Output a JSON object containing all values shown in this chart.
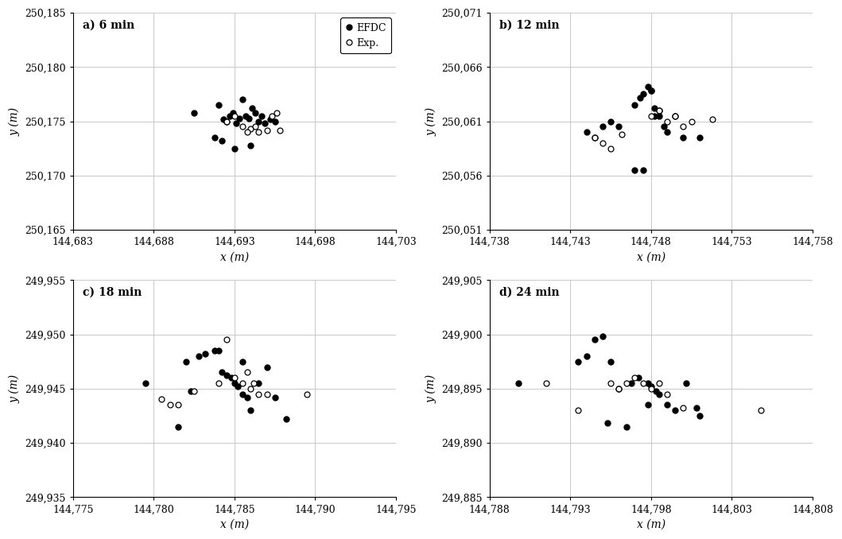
{
  "panels": [
    {
      "label": "a) 6 min",
      "xlim": [
        144683,
        144703
      ],
      "ylim": [
        250165,
        250185
      ],
      "xticks": [
        144683,
        144688,
        144693,
        144698,
        144703
      ],
      "yticks": [
        250165,
        250170,
        250175,
        250180,
        250185
      ],
      "efdc_x": [
        144690.5,
        144691.8,
        144692.0,
        144692.3,
        144692.5,
        144692.7,
        144692.9,
        144693.1,
        144693.3,
        144693.5,
        144693.7,
        144693.9,
        144694.1,
        144694.3,
        144694.5,
        144694.7,
        144694.9,
        144695.2,
        144695.5,
        144692.2,
        144693.0,
        144694.0
      ],
      "efdc_y": [
        250175.8,
        250173.5,
        250176.5,
        250175.2,
        250175.0,
        250175.5,
        250175.8,
        250174.8,
        250175.3,
        250177.0,
        250175.5,
        250175.3,
        250176.2,
        250175.8,
        250175.0,
        250175.5,
        250174.8,
        250175.2,
        250175.0,
        250173.2,
        250172.5,
        250172.8
      ],
      "exp_x": [
        144692.5,
        144693.0,
        144693.5,
        144694.0,
        144694.5,
        144695.0,
        144695.3,
        144695.6,
        144693.8,
        144694.3,
        144695.8
      ],
      "exp_y": [
        250175.0,
        250175.5,
        250174.5,
        250174.3,
        250174.0,
        250174.2,
        250175.5,
        250175.8,
        250174.0,
        250174.5,
        250174.2
      ]
    },
    {
      "label": "b) 12 min",
      "xlim": [
        144738,
        144758
      ],
      "ylim": [
        250051,
        250071
      ],
      "xticks": [
        144738,
        144743,
        144748,
        144753,
        144758
      ],
      "yticks": [
        250051,
        250056,
        250061,
        250066,
        250071
      ],
      "efdc_x": [
        144744.0,
        144744.5,
        144745.0,
        144745.5,
        144746.0,
        144747.0,
        144747.3,
        144747.5,
        144747.8,
        144748.0,
        144748.2,
        144748.5,
        144748.8,
        144749.0,
        144749.5,
        144750.0,
        144751.0,
        144747.0,
        144747.5,
        144748.0,
        144748.5,
        144748.2
      ],
      "efdc_y": [
        250060.0,
        250059.5,
        250060.5,
        250061.0,
        250060.5,
        250062.5,
        250063.2,
        250063.5,
        250064.2,
        250063.8,
        250062.2,
        250061.5,
        250060.5,
        250060.0,
        250061.5,
        250059.5,
        250059.5,
        250056.5,
        250056.5,
        250063.8,
        250062.0,
        250061.5
      ],
      "exp_x": [
        144744.5,
        144745.0,
        144745.5,
        144746.2,
        144748.0,
        144748.5,
        144749.0,
        144749.5,
        144750.0,
        144750.5,
        144751.8
      ],
      "exp_y": [
        250059.5,
        250059.0,
        250058.5,
        250059.8,
        250061.5,
        250062.0,
        250061.0,
        250061.5,
        250060.5,
        250061.0,
        250061.2
      ]
    },
    {
      "label": "c) 18 min",
      "xlim": [
        144775,
        144795
      ],
      "ylim": [
        249935,
        249955
      ],
      "xticks": [
        144775,
        144780,
        144785,
        144790,
        144795
      ],
      "yticks": [
        249935,
        249940,
        249945,
        249950,
        249955
      ],
      "efdc_x": [
        144779.5,
        144781.5,
        144782.0,
        144782.3,
        144782.8,
        144783.2,
        144783.8,
        144784.2,
        144784.5,
        144784.8,
        144785.0,
        144785.2,
        144785.5,
        144785.8,
        144786.0,
        144786.5,
        144787.0,
        144787.5,
        144788.2,
        144784.0,
        144785.5
      ],
      "efdc_y": [
        249945.5,
        249941.5,
        249947.5,
        249944.8,
        249948.0,
        249948.2,
        249948.5,
        249946.5,
        249946.2,
        249946.0,
        249945.5,
        249945.2,
        249947.5,
        249944.2,
        249943.0,
        249945.5,
        249947.0,
        249944.2,
        249942.2,
        249948.5,
        249944.5
      ],
      "exp_x": [
        144780.5,
        144781.0,
        144781.5,
        144782.5,
        144784.0,
        144784.5,
        144785.0,
        144785.5,
        144786.0,
        144786.5,
        144787.0,
        144789.5,
        144785.8,
        144786.2
      ],
      "exp_y": [
        249944.0,
        249943.5,
        249943.5,
        249944.8,
        249945.5,
        249949.5,
        249946.0,
        249945.5,
        249945.0,
        249944.5,
        249944.5,
        249944.5,
        249946.5,
        249945.5
      ]
    },
    {
      "label": "d) 24 min",
      "xlim": [
        144788,
        144808
      ],
      "ylim": [
        249885,
        249905
      ],
      "xticks": [
        144788,
        144793,
        144798,
        144803,
        144808
      ],
      "yticks": [
        249885,
        249890,
        249895,
        249900,
        249905
      ],
      "efdc_x": [
        144789.8,
        144793.5,
        144794.0,
        144794.5,
        144795.0,
        144795.5,
        144796.0,
        144796.8,
        144797.2,
        144797.8,
        144798.0,
        144798.3,
        144798.5,
        144799.0,
        144799.5,
        144800.2,
        144800.8,
        144795.3,
        144796.5,
        144797.8,
        144801.0
      ],
      "efdc_y": [
        249895.5,
        249897.5,
        249898.0,
        249899.5,
        249899.8,
        249897.5,
        249895.0,
        249895.5,
        249896.0,
        249895.5,
        249895.2,
        249894.8,
        249894.5,
        249893.5,
        249893.0,
        249895.5,
        249893.2,
        249891.8,
        249891.5,
        249893.5,
        249892.5
      ],
      "exp_x": [
        144791.5,
        144793.5,
        144795.5,
        144796.0,
        144796.5,
        144797.0,
        144797.5,
        144798.0,
        144798.5,
        144799.0,
        144800.0,
        144804.8
      ],
      "exp_y": [
        249895.5,
        249893.0,
        249895.5,
        249895.0,
        249895.5,
        249896.0,
        249895.5,
        249895.0,
        249895.5,
        249894.5,
        249893.2,
        249893.0
      ]
    }
  ],
  "xlabel": "x (m)",
  "ylabel": "y (m)",
  "legend_efdc": "EFDC",
  "legend_exp": "Exp.",
  "marker_size": 5,
  "bg_color": "#ffffff",
  "grid_color": "#c0c0c0",
  "font_family": "DejaVu Serif"
}
